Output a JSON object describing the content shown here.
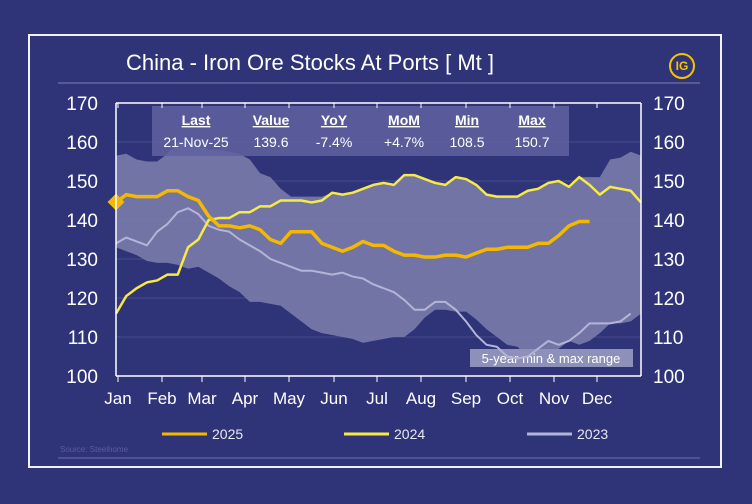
{
  "chart_data": {
    "type": "line",
    "title": "China - Iron Ore Stocks At Ports [ Mt ]",
    "source": "Source: Steelhome",
    "logo_text": "IG",
    "x_tick_labels": [
      "Jan",
      "Feb",
      "Mar",
      "Apr",
      "May",
      "Jun",
      "Jul",
      "Aug",
      "Sep",
      "Oct",
      "Nov",
      "Dec"
    ],
    "y_ticks": [
      100,
      110,
      120,
      130,
      140,
      150,
      160,
      170
    ],
    "ylim": [
      100,
      170
    ],
    "grid": true,
    "stats_table": {
      "headers": [
        "Last",
        "Value",
        "YoY",
        "MoM",
        "Min",
        "Max"
      ],
      "values": [
        "21-Nov-25",
        "139.6",
        "-7.4%",
        "+4.7%",
        "108.5",
        "150.7"
      ]
    },
    "range_label": "5-year min & max range",
    "range": {
      "max": [
        156.5,
        157,
        155.5,
        155,
        155,
        157,
        160,
        160,
        159,
        158,
        158,
        157.5,
        157,
        155.5,
        152,
        151,
        148,
        146,
        146,
        146,
        146,
        147,
        146.5,
        147,
        148,
        149,
        149.5,
        149,
        151.5,
        151.5,
        150.5,
        149.5,
        149,
        151,
        150.5,
        149,
        146.5,
        146,
        146,
        146,
        147.5,
        148,
        149.5,
        150,
        148.5,
        151,
        151,
        151,
        155.5,
        156,
        157.5,
        156.5
      ],
      "min": [
        133,
        132,
        131,
        129.5,
        129,
        129,
        128.5,
        127.5,
        128,
        126.5,
        125,
        123,
        121.5,
        119,
        119,
        118.5,
        118,
        116,
        114,
        112,
        111,
        110.5,
        110,
        109.5,
        108.5,
        109,
        109.5,
        110,
        110,
        112,
        115,
        117,
        117,
        116.5,
        116.5,
        114.5,
        112,
        110,
        108,
        107.5,
        105,
        104.5,
        105,
        107,
        109,
        108,
        109,
        111,
        113.5,
        113.5,
        114,
        116
      ]
    },
    "series": [
      {
        "name": "2025",
        "color": "#f5b800",
        "values": [
          144.6,
          146.5,
          146,
          146,
          146,
          147.5,
          147.5,
          146,
          145,
          141,
          138.5,
          138.5,
          138,
          138.5,
          137.5,
          135,
          134,
          137,
          137,
          137,
          134,
          133,
          132,
          133,
          134.5,
          133.5,
          133.5,
          132,
          131,
          131,
          130.5,
          130.5,
          131,
          131,
          130.5,
          131.5,
          132.5,
          132.5,
          133,
          133,
          133,
          134,
          134,
          136,
          138.5,
          139.6,
          139.6
        ]
      },
      {
        "name": "2024",
        "color": "#f7ea45",
        "values": [
          116,
          120.5,
          122.5,
          124,
          124.5,
          126,
          126,
          133,
          135,
          140,
          140.5,
          140.5,
          142,
          142,
          143.5,
          143.5,
          145,
          145,
          145,
          144.5,
          145,
          147,
          146.5,
          147,
          148,
          149,
          149.5,
          149,
          151.5,
          151.5,
          150.5,
          149.5,
          149,
          151,
          150.5,
          149,
          146.5,
          146,
          146,
          146,
          147.5,
          148,
          149.5,
          150,
          148.5,
          151,
          149,
          146.5,
          148.5,
          148,
          147.5,
          144.5
        ]
      },
      {
        "name": "2023",
        "color": "#b3b5d6",
        "values": [
          134,
          135.5,
          134.5,
          133.5,
          137,
          139,
          142,
          143,
          141.5,
          138.5,
          137.5,
          137,
          135,
          133.5,
          132,
          130,
          129,
          128,
          127,
          127,
          126.5,
          126,
          126.5,
          125.5,
          125,
          123.5,
          122.5,
          121.5,
          119.5,
          117,
          117,
          119,
          119,
          117,
          114,
          110.5,
          108,
          107.5,
          105,
          104.5,
          105,
          107,
          109,
          108,
          109,
          111,
          113.5,
          113.5,
          113.5,
          114,
          116
        ]
      }
    ],
    "colors": {
      "background": "#2f3377",
      "range_band": "#7578a8",
      "stats_box": "#5f62a0"
    }
  }
}
